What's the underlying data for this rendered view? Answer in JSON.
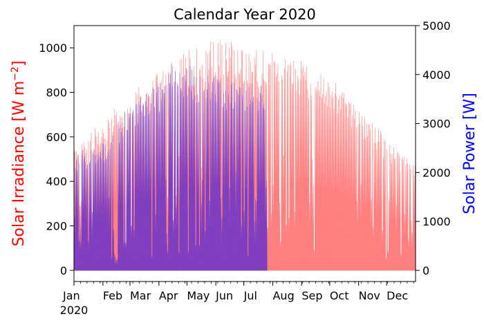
{
  "chart_data": {
    "type": "area",
    "title": "Calendar Year 2020",
    "xlabel": "",
    "x_tick_labels": [
      "Jan",
      "Feb",
      "Mar",
      "Apr",
      "May",
      "Jun",
      "Jul",
      "Aug",
      "Sep",
      "Oct",
      "Nov",
      "Dec"
    ],
    "x_year_label": "2020",
    "xlim": [
      "2020-01-01",
      "2020-12-31"
    ],
    "y_left": {
      "label_main": "Solar Irradiance [W m",
      "label_sup": "−2",
      "label_end": "]",
      "color": "#ff0000",
      "lim": [
        -50,
        1100
      ],
      "ticks": [
        0,
        200,
        400,
        600,
        800,
        1000
      ]
    },
    "y_right": {
      "label": "Solar Power [W]",
      "color": "#0000ff",
      "lim": [
        -227,
        5000
      ],
      "ticks": [
        0,
        1000,
        2000,
        3000,
        4000,
        5000
      ]
    },
    "series": [
      {
        "name": "Solar Irradiance",
        "axis": "left",
        "color": "#ff7f7f",
        "x_range": [
          "2020-01-01",
          "2020-12-31"
        ],
        "daily_peak_envelope": {
          "x": [
            "2020-01-01",
            "2020-01-15",
            "2020-02-01",
            "2020-02-15",
            "2020-03-01",
            "2020-03-15",
            "2020-04-01",
            "2020-04-15",
            "2020-05-01",
            "2020-05-15",
            "2020-06-01",
            "2020-06-15",
            "2020-07-01",
            "2020-07-15",
            "2020-08-01",
            "2020-08-15",
            "2020-09-01",
            "2020-09-15",
            "2020-10-01",
            "2020-10-15",
            "2020-11-01",
            "2020-11-15",
            "2020-12-01",
            "2020-12-15",
            "2020-12-31"
          ],
          "y": [
            560,
            610,
            680,
            740,
            800,
            840,
            890,
            940,
            990,
            1020,
            1040,
            1035,
            1010,
            990,
            980,
            965,
            940,
            910,
            870,
            820,
            740,
            670,
            600,
            540,
            470
          ]
        }
      },
      {
        "name": "Solar Power",
        "axis": "right",
        "color": "#7f3fbf",
        "x_range": [
          "2020-01-01",
          "2020-07-25"
        ],
        "daily_peak_envelope": {
          "x": [
            "2020-01-01",
            "2020-01-15",
            "2020-02-01",
            "2020-02-15",
            "2020-03-01",
            "2020-03-15",
            "2020-04-01",
            "2020-04-15",
            "2020-05-01",
            "2020-05-15",
            "2020-06-01",
            "2020-06-15",
            "2020-07-01",
            "2020-07-15",
            "2020-07-25"
          ],
          "y": [
            2400,
            2500,
            2700,
            3000,
            3500,
            3700,
            3900,
            4400,
            4200,
            4100,
            4000,
            4000,
            3950,
            3850,
            3800
          ]
        }
      }
    ],
    "grid": false,
    "legend": "none"
  }
}
